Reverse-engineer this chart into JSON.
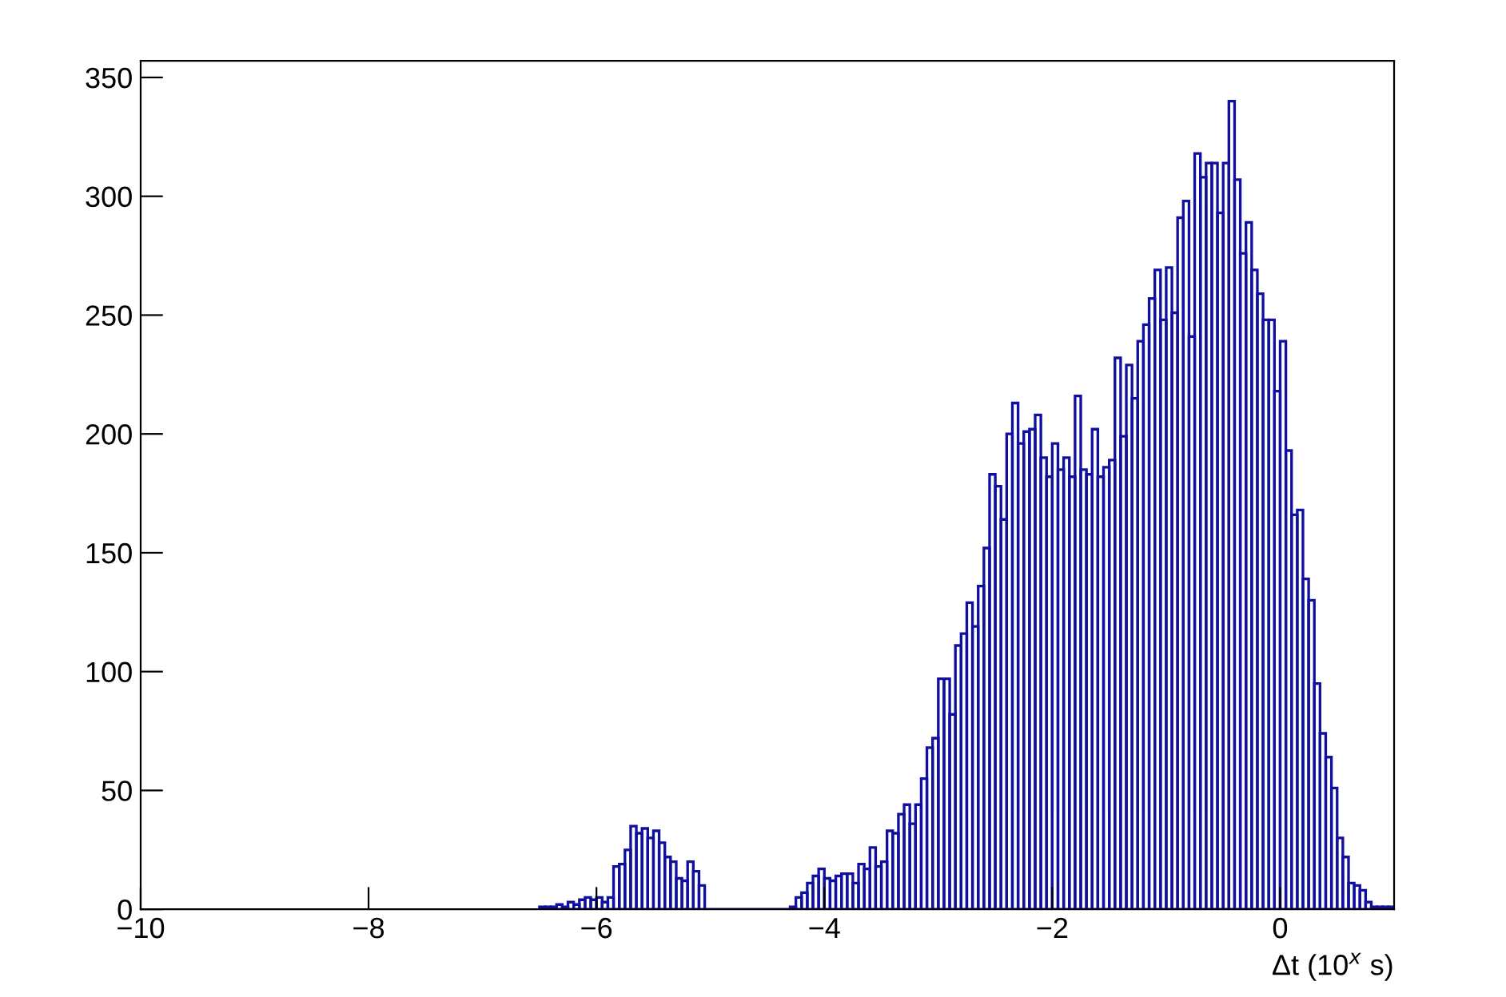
{
  "chart_data": {
    "type": "histogram",
    "xlabel": "Δt (10$^{x}$ s)",
    "color": "#1010a0",
    "grid": false,
    "bins": [
      -6.5,
      -6.45,
      -6.4,
      -6.35,
      -6.3,
      -6.25,
      -6.2,
      -6.15,
      -6.1,
      -6.05,
      -6.0,
      -5.95,
      -5.9,
      -5.85,
      -5.8,
      -5.75,
      -5.7,
      -5.65,
      -5.6,
      -5.55,
      -5.5,
      -5.45,
      -5.4,
      -5.35,
      -5.3,
      -5.25,
      -5.2,
      -5.15,
      -5.1,
      -5.05,
      -4.3,
      -4.25,
      -4.2,
      -4.15,
      -4.1,
      -4.05,
      -4.0,
      -3.95,
      -3.9,
      -3.85,
      -3.8,
      -3.75,
      -3.7,
      -3.65,
      -3.6,
      -3.55,
      -3.5,
      -3.45,
      -3.4,
      -3.35,
      -3.3,
      -3.25,
      -3.2,
      -3.15,
      -3.1,
      -3.05,
      -3.0,
      -2.95,
      -2.9,
      -2.85,
      -2.8,
      -2.75,
      -2.7,
      -2.65,
      -2.6,
      -2.55,
      -2.5,
      -2.45,
      -2.4,
      -2.35,
      -2.3,
      -2.25,
      -2.2,
      -2.15,
      -2.1,
      -2.05,
      -2.0,
      -1.95,
      -1.9,
      -1.85,
      -1.8,
      -1.75,
      -1.7,
      -1.65,
      -1.6,
      -1.55,
      -1.5,
      -1.45,
      -1.4,
      -1.35,
      -1.3,
      -1.25,
      -1.2,
      -1.15,
      -1.1,
      -1.05,
      -1.0,
      -0.95,
      -0.9,
      -0.85,
      -0.8,
      -0.75,
      -0.7,
      -0.65,
      -0.6,
      -0.55,
      -0.5,
      -0.45,
      -0.4,
      -0.35,
      -0.3,
      -0.25,
      -0.2,
      -0.15,
      -0.1,
      -0.05,
      0.0,
      0.05,
      0.1,
      0.15,
      0.2,
      0.25,
      0.3,
      0.35,
      0.4,
      0.45,
      0.5,
      0.55,
      0.6,
      0.65,
      0.7,
      0.75,
      0.8,
      0.85,
      0.9,
      0.95,
      1.0
    ],
    "values": [
      1,
      1,
      1,
      2,
      1,
      3,
      2,
      4,
      5,
      4,
      5,
      3,
      5,
      18,
      19,
      25,
      35,
      32,
      34,
      30,
      33,
      28,
      22,
      20,
      13,
      12,
      20,
      16,
      10,
      0,
      1,
      5,
      7,
      11,
      14,
      17,
      13,
      12,
      14,
      15,
      15,
      11,
      19,
      17,
      26,
      18,
      20,
      33,
      32,
      40,
      44,
      36,
      44,
      55,
      68,
      72,
      97,
      97,
      82,
      111,
      116,
      129,
      119,
      136,
      152,
      183,
      178,
      164,
      200,
      213,
      196,
      201,
      202,
      208,
      190,
      182,
      196,
      185,
      190,
      182,
      216,
      185,
      183,
      202,
      182,
      186,
      189,
      232,
      199,
      229,
      215,
      239,
      246,
      257,
      269,
      248,
      270,
      251,
      291,
      298,
      241,
      318,
      308,
      314,
      314,
      293,
      314,
      340,
      307,
      276,
      289,
      269,
      259,
      248,
      248,
      218,
      239,
      193,
      166,
      168,
      139,
      130,
      95,
      74,
      64,
      51,
      30,
      22,
      11,
      10,
      8,
      3,
      1,
      1,
      1,
      1
    ],
    "xlim": [
      -10,
      1
    ],
    "xticks": [
      {
        "value": -10,
        "label": "−10"
      },
      {
        "value": -8,
        "label": "−8"
      },
      {
        "value": -6,
        "label": "−6"
      },
      {
        "value": -4,
        "label": "−4"
      },
      {
        "value": -2,
        "label": "−2"
      },
      0
    ],
    "ylim": [
      0,
      357
    ],
    "yticks": [
      0,
      50,
      100,
      150,
      200,
      250,
      300,
      350
    ]
  }
}
